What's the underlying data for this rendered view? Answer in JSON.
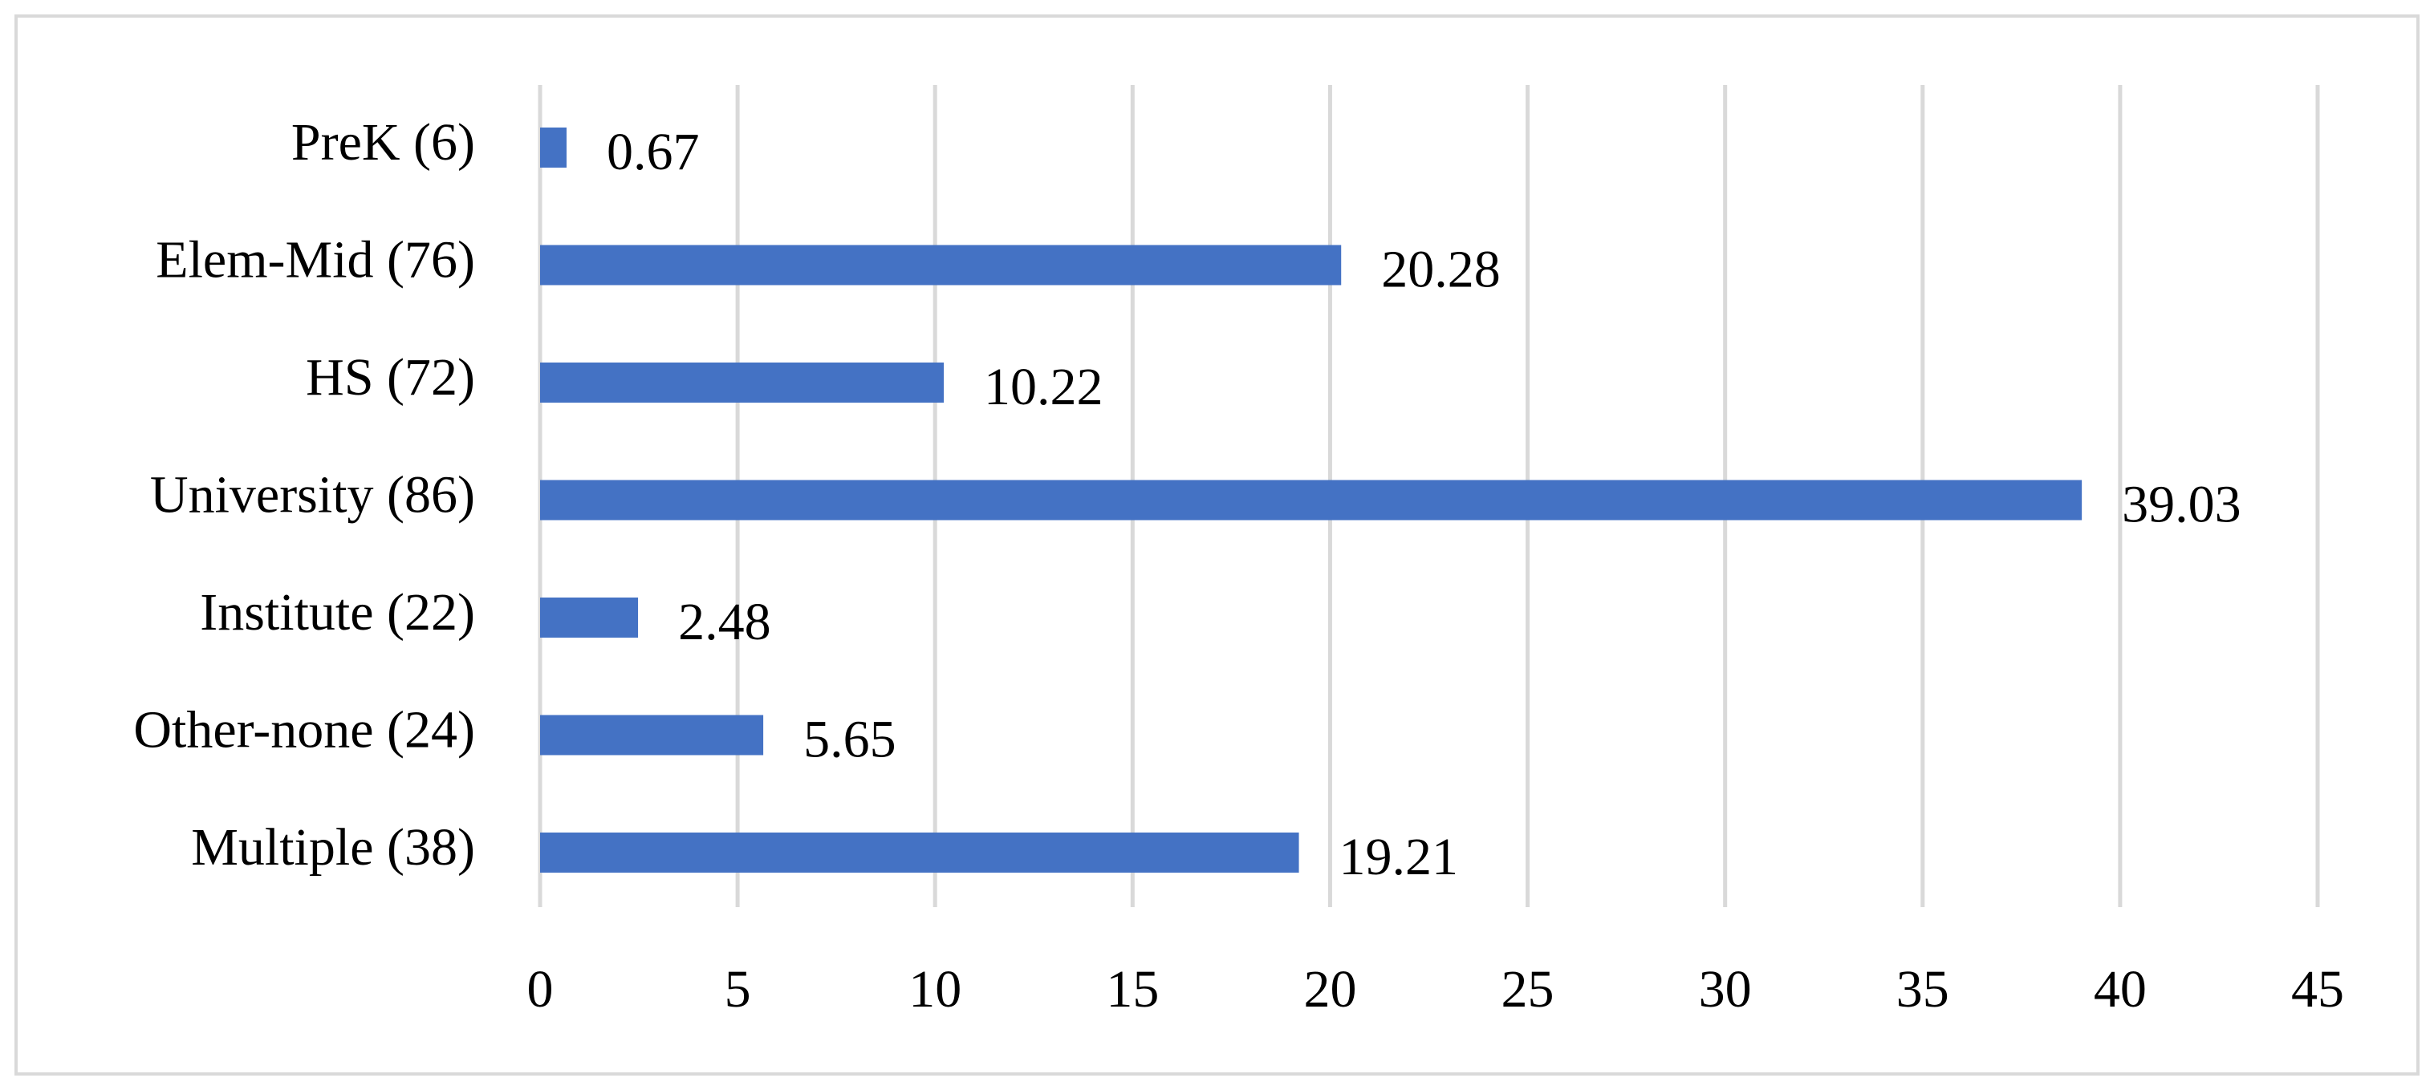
{
  "chart_data": {
    "type": "hbar",
    "categories": [
      "PreK (6)",
      "Elem-Mid (76)",
      "HS (72)",
      "University (86)",
      "Institute (22)",
      "Other-none (24)",
      "Multiple (38)"
    ],
    "values": [
      0.67,
      20.28,
      10.22,
      39.03,
      2.48,
      5.65,
      19.21
    ],
    "color": "#4472c4",
    "xlim": [
      0,
      45
    ],
    "xticks": [
      0,
      5,
      10,
      15,
      20,
      25,
      30,
      35,
      40,
      45
    ],
    "grid": true
  }
}
